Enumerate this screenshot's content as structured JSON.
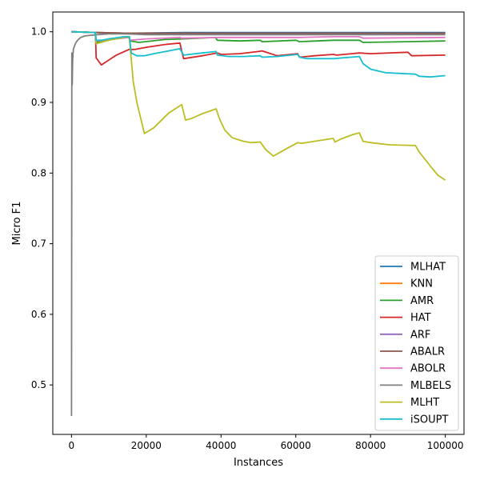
{
  "chart_data": {
    "type": "line",
    "title": "",
    "xlabel": "Instances",
    "ylabel": "Micro F1",
    "xlim": [
      -5000,
      105000
    ],
    "ylim": [
      0.43,
      1.028
    ],
    "grid": false,
    "legend_position": "lower-right",
    "xticks": [
      0,
      20000,
      40000,
      60000,
      80000,
      100000
    ],
    "xtick_labels": [
      "0",
      "20000",
      "40000",
      "60000",
      "80000",
      "100000"
    ],
    "yticks": [
      0.5,
      0.6,
      0.7,
      0.8,
      0.9,
      1.0
    ],
    "ytick_labels": [
      "0.5",
      "0.6",
      "0.7",
      "0.8",
      "0.9",
      "1.0"
    ],
    "series": [
      {
        "name": "MLHAT",
        "color": "#1f77b4",
        "x": [
          0,
          6500,
          15000,
          30000,
          50000,
          70000,
          100000
        ],
        "y": [
          1.0,
          0.999,
          0.998,
          0.999,
          0.999,
          0.999,
          0.999
        ]
      },
      {
        "name": "KNN",
        "color": "#ff7f0e",
        "x": [
          0,
          6500,
          15000,
          30000,
          50000,
          70000,
          100000
        ],
        "y": [
          1.0,
          0.999,
          0.998,
          0.998,
          0.998,
          0.998,
          0.998
        ]
      },
      {
        "name": "AMR",
        "color": "#2ca02c",
        "x": [
          0,
          6300,
          6600,
          10000,
          15400,
          15800,
          18000,
          25000,
          30000,
          38500,
          39000,
          45000,
          50500,
          51000,
          60000,
          61000,
          70000,
          77000,
          78000,
          90000,
          100000
        ],
        "y": [
          1.0,
          0.999,
          0.985,
          0.99,
          0.992,
          0.987,
          0.985,
          0.989,
          0.99,
          0.992,
          0.988,
          0.987,
          0.988,
          0.986,
          0.988,
          0.986,
          0.988,
          0.988,
          0.985,
          0.986,
          0.987
        ]
      },
      {
        "name": "HAT",
        "color": "#d62728",
        "x": [
          0,
          6400,
          6600,
          8000,
          10000,
          12000,
          15400,
          17000,
          20000,
          25000,
          29000,
          29400,
          30000,
          35000,
          39000,
          40000,
          45000,
          50000,
          51000,
          55000,
          60500,
          61000,
          65000,
          70000,
          71000,
          75000,
          77000,
          80000,
          90000,
          91000,
          100000
        ],
        "y": [
          1.0,
          0.999,
          0.963,
          0.953,
          0.96,
          0.967,
          0.975,
          0.975,
          0.978,
          0.982,
          0.984,
          0.975,
          0.962,
          0.966,
          0.97,
          0.968,
          0.969,
          0.972,
          0.973,
          0.966,
          0.969,
          0.964,
          0.966,
          0.968,
          0.967,
          0.969,
          0.97,
          0.969,
          0.971,
          0.966,
          0.967
        ]
      },
      {
        "name": "ARF",
        "color": "#9467bd",
        "x": [
          0,
          6500,
          15000,
          30000,
          50000,
          70000,
          100000
        ],
        "y": [
          1.0,
          0.999,
          0.997,
          0.998,
          0.998,
          0.998,
          0.998
        ]
      },
      {
        "name": "ABALR",
        "color": "#8c564b",
        "x": [
          0,
          6500,
          15000,
          30000,
          50000,
          70000,
          100000
        ],
        "y": [
          1.0,
          0.999,
          0.998,
          0.998,
          0.998,
          0.998,
          0.998
        ]
      },
      {
        "name": "ABOLR",
        "color": "#e377c2",
        "x": [
          0,
          6400,
          6600,
          15400,
          15600,
          20000,
          29000,
          29400,
          40000,
          50000,
          61000,
          70000,
          77000,
          78000,
          100000
        ],
        "y": [
          1.0,
          0.999,
          0.987,
          0.992,
          0.988,
          0.99,
          0.992,
          0.991,
          0.992,
          0.992,
          0.992,
          0.993,
          0.993,
          0.991,
          0.992
        ]
      },
      {
        "name": "MLBELS",
        "color": "#7f7f7f",
        "x": [
          0,
          100,
          200,
          300,
          500,
          800,
          1200,
          1800,
          2500,
          3500,
          5000,
          7000,
          10000,
          15000,
          20000,
          30000,
          50000,
          70000,
          100000
        ],
        "y": [
          0.456,
          0.97,
          0.925,
          0.96,
          0.975,
          0.98,
          0.985,
          0.989,
          0.992,
          0.994,
          0.995,
          0.996,
          0.997,
          0.997,
          0.996,
          0.996,
          0.996,
          0.996,
          0.996
        ]
      },
      {
        "name": "MLHT",
        "color": "#bcbd22",
        "x": [
          0,
          6400,
          6600,
          10000,
          15000,
          15500,
          16500,
          17500,
          19500,
          22000,
          26000,
          29500,
          30500,
          32000,
          35000,
          38700,
          39500,
          41000,
          43000,
          46000,
          48000,
          50500,
          52000,
          54000,
          57000,
          60500,
          61500,
          65000,
          70000,
          70500,
          72000,
          75000,
          77000,
          78000,
          80000,
          85000,
          92000,
          93000,
          96000,
          98000,
          100000
        ],
        "y": [
          1.0,
          0.999,
          0.983,
          0.988,
          0.993,
          0.99,
          0.93,
          0.9,
          0.856,
          0.864,
          0.885,
          0.897,
          0.875,
          0.877,
          0.884,
          0.891,
          0.878,
          0.861,
          0.85,
          0.845,
          0.843,
          0.844,
          0.833,
          0.824,
          0.833,
          0.843,
          0.842,
          0.845,
          0.849,
          0.844,
          0.848,
          0.854,
          0.857,
          0.845,
          0.843,
          0.84,
          0.839,
          0.83,
          0.81,
          0.797,
          0.79
        ]
      },
      {
        "name": "iSOUPT",
        "color": "#17becf",
        "x": [
          0,
          6400,
          6600,
          8000,
          10000,
          14000,
          15500,
          16000,
          17500,
          19500,
          22000,
          26000,
          29000,
          30000,
          35000,
          38700,
          39000,
          42000,
          46000,
          50500,
          51000,
          55000,
          60500,
          61000,
          63000,
          70000,
          77000,
          78000,
          80000,
          84000,
          88000,
          92000,
          93000,
          96000,
          100000
        ],
        "y": [
          1.0,
          0.999,
          0.988,
          0.988,
          0.99,
          0.993,
          0.993,
          0.97,
          0.966,
          0.966,
          0.969,
          0.973,
          0.976,
          0.967,
          0.97,
          0.972,
          0.967,
          0.965,
          0.965,
          0.966,
          0.964,
          0.965,
          0.968,
          0.964,
          0.962,
          0.962,
          0.965,
          0.955,
          0.947,
          0.942,
          0.941,
          0.94,
          0.937,
          0.936,
          0.938
        ]
      }
    ]
  }
}
